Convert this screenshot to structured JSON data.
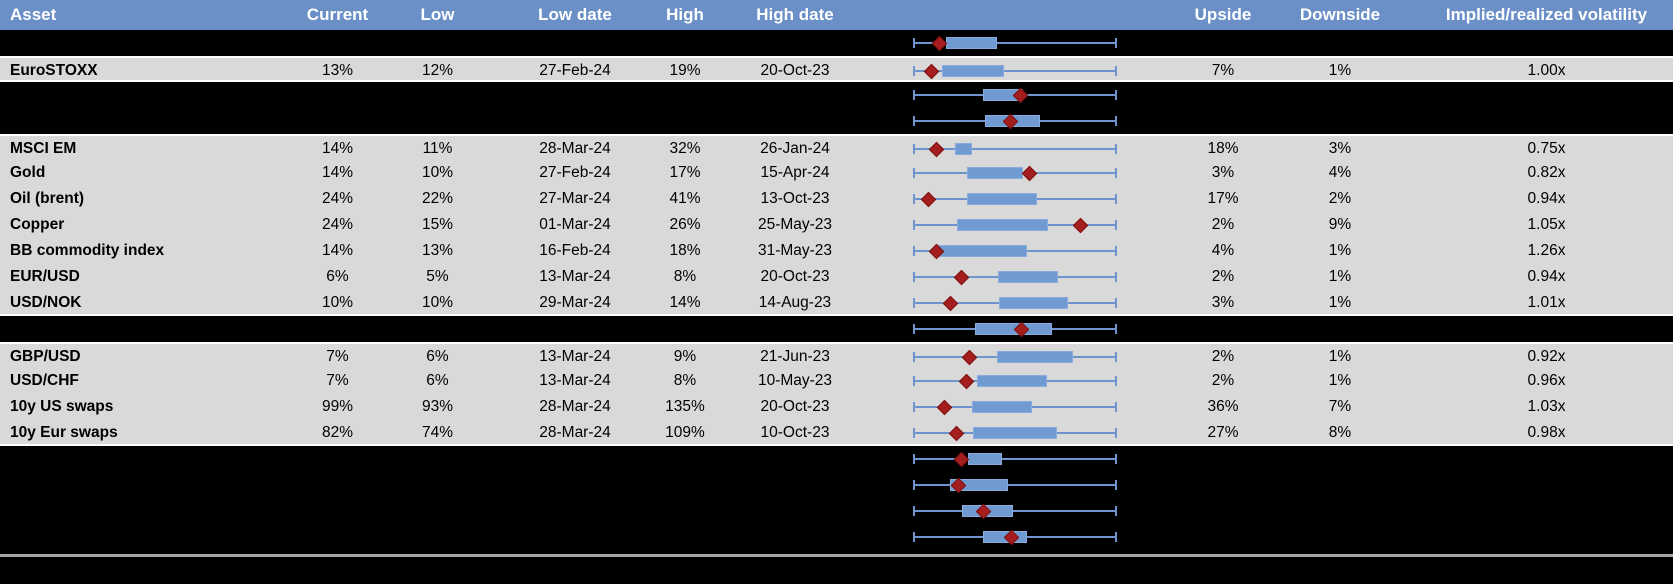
{
  "table": {
    "columns": {
      "asset": "Asset",
      "current": "Current",
      "low": "Low",
      "low_date": "Low date",
      "high": "High",
      "high_date": "High date",
      "upside": "Upside",
      "downside": "Downside",
      "vol": "Implied/realized volatility"
    },
    "rows": [
      {
        "type": "spacer",
        "box": {
          "start": 16.2,
          "end": 41.0,
          "marker": 13.7
        }
      },
      {
        "type": "data",
        "asset": "EuroSTOXX",
        "current": "13%",
        "low": "12%",
        "low_date": "27-Feb-24",
        "high": "19%",
        "high_date": "20-Oct-23",
        "upside": "7%",
        "downside": "1%",
        "vol": "1.00x",
        "box": {
          "start": 14.2,
          "end": 44.6,
          "marker": 9.8
        }
      },
      {
        "type": "spacer",
        "box": {
          "start": 34.3,
          "end": 53.9,
          "marker": 53.4
        }
      },
      {
        "type": "spacer",
        "box": {
          "start": 35.3,
          "end": 62.3,
          "marker": 48.5
        }
      },
      {
        "type": "data",
        "asset": "MSCI EM",
        "current": "14%",
        "low": "11%",
        "low_date": "28-Mar-24",
        "high": "32%",
        "high_date": "26-Jan-24",
        "upside": "18%",
        "downside": "3%",
        "vol": "0.75x",
        "box": {
          "start": 20.6,
          "end": 28.9,
          "marker": 11.8
        }
      },
      {
        "type": "data",
        "asset": "Gold",
        "current": "14%",
        "low": "10%",
        "low_date": "27-Feb-24",
        "high": "17%",
        "high_date": "15-Apr-24",
        "upside": "3%",
        "downside": "4%",
        "vol": "0.82x",
        "box": {
          "start": 26.5,
          "end": 53.9,
          "marker": 57.4
        }
      },
      {
        "type": "data",
        "asset": "Oil (brent)",
        "current": "24%",
        "low": "22%",
        "low_date": "27-Mar-24",
        "high": "41%",
        "high_date": "13-Oct-23",
        "upside": "17%",
        "downside": "2%",
        "vol": "0.94x",
        "box": {
          "start": 26.5,
          "end": 60.8,
          "marker": 8.3
        }
      },
      {
        "type": "data",
        "asset": "Copper",
        "current": "24%",
        "low": "15%",
        "low_date": "01-Mar-24",
        "high": "26%",
        "high_date": "25-May-23",
        "upside": "2%",
        "downside": "9%",
        "vol": "1.05x",
        "box": {
          "start": 21.6,
          "end": 66.2,
          "marker": 82.4
        }
      },
      {
        "type": "data",
        "asset": "BB commodity index",
        "current": "14%",
        "low": "13%",
        "low_date": "16-Feb-24",
        "high": "18%",
        "high_date": "31-May-23",
        "upside": "4%",
        "downside": "1%",
        "vol": "1.26x",
        "box": {
          "start": 12.3,
          "end": 55.9,
          "marker": 11.8
        }
      },
      {
        "type": "data",
        "asset": "EUR/USD",
        "current": "6%",
        "low": "5%",
        "low_date": "13-Mar-24",
        "high": "8%",
        "high_date": "20-Oct-23",
        "upside": "2%",
        "downside": "1%",
        "vol": "0.94x",
        "box": {
          "start": 41.7,
          "end": 71.1,
          "marker": 24.5
        }
      },
      {
        "type": "data",
        "asset": "USD/NOK",
        "current": "10%",
        "low": "10%",
        "low_date": "29-Mar-24",
        "high": "14%",
        "high_date": "14-Aug-23",
        "upside": "3%",
        "downside": "1%",
        "vol": "1.01x",
        "box": {
          "start": 42.0,
          "end": 76.0,
          "marker": 19.0
        }
      },
      {
        "type": "spacer",
        "box": {
          "start": 30.5,
          "end": 68.0,
          "marker": 53.5
        }
      },
      {
        "type": "data",
        "asset": "GBP/USD",
        "current": "7%",
        "low": "6%",
        "low_date": "13-Mar-24",
        "high": "9%",
        "high_date": "21-Jun-23",
        "upside": "2%",
        "downside": "1%",
        "vol": "0.92x",
        "box": {
          "start": 41.0,
          "end": 78.5,
          "marker": 28.0
        }
      },
      {
        "type": "data",
        "asset": "USD/CHF",
        "current": "7%",
        "low": "6%",
        "low_date": "13-Mar-24",
        "high": "8%",
        "high_date": "10-May-23",
        "upside": "2%",
        "downside": "1%",
        "vol": "0.96x",
        "box": {
          "start": 31.5,
          "end": 65.5,
          "marker": 26.5
        }
      },
      {
        "type": "data",
        "asset": "10y US swaps",
        "current": "99%",
        "low": "93%",
        "low_date": "28-Mar-24",
        "high": "135%",
        "high_date": "20-Oct-23",
        "upside": "36%",
        "downside": "7%",
        "vol": "1.03x",
        "box": {
          "start": 29.0,
          "end": 58.5,
          "marker": 15.7
        }
      },
      {
        "type": "data",
        "asset": "10y Eur swaps",
        "current": "82%",
        "low": "74%",
        "low_date": "28-Mar-24",
        "high": "109%",
        "high_date": "10-Oct-23",
        "upside": "27%",
        "downside": "8%",
        "vol": "0.98x",
        "box": {
          "start": 29.5,
          "end": 70.5,
          "marker": 22.0
        }
      },
      {
        "type": "spacer",
        "box": {
          "start": 27.0,
          "end": 43.5,
          "marker": 24.5
        }
      },
      {
        "type": "spacer",
        "box": {
          "start": 18.0,
          "end": 46.5,
          "marker": 23.0
        }
      },
      {
        "type": "spacer",
        "box": {
          "start": 24.0,
          "end": 49.0,
          "marker": 35.0
        }
      },
      {
        "type": "spacer",
        "box": {
          "start": 34.5,
          "end": 56.0,
          "marker": 49.0
        }
      }
    ]
  },
  "colors": {
    "header_bg": "#6b90c7",
    "row_bg": "#d9d9d9",
    "spacer_bg": "#000000",
    "box_fill": "#6f9ad2",
    "box_border": "#8aabdb",
    "whisker": "#6d95cc",
    "marker_fill": "#a51e1f",
    "marker_border": "#7a120f",
    "separator": "#a6a6a6"
  }
}
